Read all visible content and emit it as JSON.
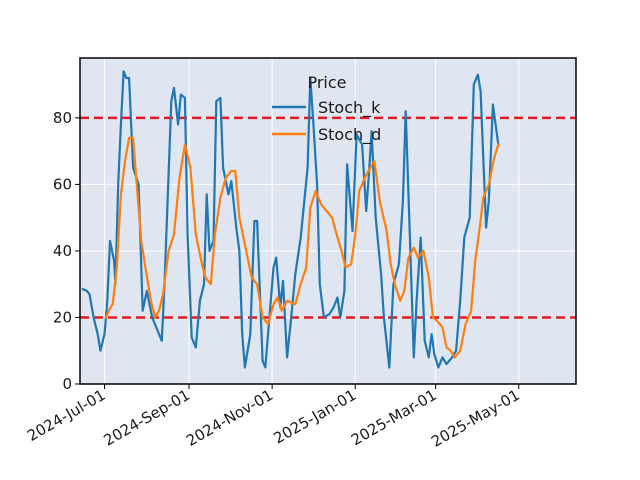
{
  "chart_data": {
    "type": "line",
    "title": "",
    "xlabel": "",
    "ylabel": "",
    "legend": {
      "title": "Price",
      "placement": "top-center"
    },
    "x_start": "2024-06-13",
    "x_end": "2025-06-12",
    "ylim": [
      0,
      98
    ],
    "yticks": [
      0,
      20,
      40,
      60,
      80
    ],
    "xticks": [
      {
        "date": "2024-07-01",
        "label": "2024-Jul-01"
      },
      {
        "date": "2024-09-01",
        "label": "2024-Sep-01"
      },
      {
        "date": "2024-11-01",
        "label": "2024-Nov-01"
      },
      {
        "date": "2025-01-01",
        "label": "2025-Jan-01"
      },
      {
        "date": "2025-03-01",
        "label": "2025-Mar-01"
      },
      {
        "date": "2025-05-01",
        "label": "2025-May-01"
      }
    ],
    "hlines": [
      {
        "value": 80,
        "color": "#e41a1c",
        "style": "dashed"
      },
      {
        "value": 20,
        "color": "#e41a1c",
        "style": "dashed"
      }
    ],
    "series": [
      {
        "name": "Stoch_k",
        "color": "#1f77b4",
        "points": [
          [
            "2024-06-15",
            28.5
          ],
          [
            "2024-06-18",
            28
          ],
          [
            "2024-06-20",
            27
          ],
          [
            "2024-06-23",
            20
          ],
          [
            "2024-06-26",
            15
          ],
          [
            "2024-06-28",
            10
          ],
          [
            "2024-07-01",
            15
          ],
          [
            "2024-07-03",
            25
          ],
          [
            "2024-07-05",
            43
          ],
          [
            "2024-07-08",
            37
          ],
          [
            "2024-07-09",
            30
          ],
          [
            "2024-07-11",
            60
          ],
          [
            "2024-07-13",
            78
          ],
          [
            "2024-07-15",
            94
          ],
          [
            "2024-07-17",
            92
          ],
          [
            "2024-07-19",
            92
          ],
          [
            "2024-07-22",
            65
          ],
          [
            "2024-07-26",
            60
          ],
          [
            "2024-07-29",
            22
          ],
          [
            "2024-08-01",
            28
          ],
          [
            "2024-08-05",
            20
          ],
          [
            "2024-08-09",
            16
          ],
          [
            "2024-08-12",
            13
          ],
          [
            "2024-08-14",
            30
          ],
          [
            "2024-08-19",
            85
          ],
          [
            "2024-08-21",
            89
          ],
          [
            "2024-08-24",
            78
          ],
          [
            "2024-08-26",
            87
          ],
          [
            "2024-08-29",
            86
          ],
          [
            "2024-08-31",
            45
          ],
          [
            "2024-09-03",
            14
          ],
          [
            "2024-09-06",
            11
          ],
          [
            "2024-09-09",
            25
          ],
          [
            "2024-09-12",
            30
          ],
          [
            "2024-09-14",
            57
          ],
          [
            "2024-09-16",
            40
          ],
          [
            "2024-09-19",
            43
          ],
          [
            "2024-09-21",
            85
          ],
          [
            "2024-09-24",
            86
          ],
          [
            "2024-09-26",
            65
          ],
          [
            "2024-09-30",
            57
          ],
          [
            "2024-10-02",
            61
          ],
          [
            "2024-10-06",
            46
          ],
          [
            "2024-10-08",
            40
          ],
          [
            "2024-10-10",
            15
          ],
          [
            "2024-10-12",
            5
          ],
          [
            "2024-10-16",
            15
          ],
          [
            "2024-10-19",
            49
          ],
          [
            "2024-10-21",
            49
          ],
          [
            "2024-10-25",
            7
          ],
          [
            "2024-10-27",
            5
          ],
          [
            "2024-10-30",
            20
          ],
          [
            "2024-11-02",
            35
          ],
          [
            "2024-11-04",
            38
          ],
          [
            "2024-11-07",
            23
          ],
          [
            "2024-11-09",
            31
          ],
          [
            "2024-11-12",
            8
          ],
          [
            "2024-11-15",
            20
          ],
          [
            "2024-11-18",
            33
          ],
          [
            "2024-11-22",
            44
          ],
          [
            "2024-11-27",
            65
          ],
          [
            "2024-11-29",
            92
          ],
          [
            "2024-12-01",
            80
          ],
          [
            "2024-12-04",
            60
          ],
          [
            "2024-12-06",
            30
          ],
          [
            "2024-12-09",
            20
          ],
          [
            "2024-12-13",
            21
          ],
          [
            "2024-12-16",
            23
          ],
          [
            "2024-12-19",
            26
          ],
          [
            "2024-12-21",
            20
          ],
          [
            "2024-12-24",
            28
          ],
          [
            "2024-12-26",
            66
          ],
          [
            "2024-12-30",
            46
          ],
          [
            "2025-01-02",
            75
          ],
          [
            "2025-01-06",
            72
          ],
          [
            "2025-01-09",
            52
          ],
          [
            "2025-01-11",
            63
          ],
          [
            "2025-01-13",
            76
          ],
          [
            "2025-01-16",
            50
          ],
          [
            "2025-01-20",
            33
          ],
          [
            "2025-01-22",
            20
          ],
          [
            "2025-01-26",
            5
          ],
          [
            "2025-01-29",
            30
          ],
          [
            "2025-02-02",
            36
          ],
          [
            "2025-02-05",
            55
          ],
          [
            "2025-02-07",
            82
          ],
          [
            "2025-02-10",
            45
          ],
          [
            "2025-02-13",
            8
          ],
          [
            "2025-02-15",
            25
          ],
          [
            "2025-02-18",
            44
          ],
          [
            "2025-02-21",
            13
          ],
          [
            "2025-02-24",
            8
          ],
          [
            "2025-02-26",
            15
          ],
          [
            "2025-02-28",
            9
          ],
          [
            "2025-03-03",
            5
          ],
          [
            "2025-03-06",
            8
          ],
          [
            "2025-03-09",
            6
          ],
          [
            "2025-03-13",
            8
          ],
          [
            "2025-03-16",
            10
          ],
          [
            "2025-03-19",
            25
          ],
          [
            "2025-03-22",
            44
          ],
          [
            "2025-03-26",
            50
          ],
          [
            "2025-03-29",
            90
          ],
          [
            "2025-04-01",
            93
          ],
          [
            "2025-04-03",
            88
          ],
          [
            "2025-04-07",
            47
          ],
          [
            "2025-04-09",
            55
          ],
          [
            "2025-04-12",
            84
          ],
          [
            "2025-04-16",
            72
          ]
        ]
      },
      {
        "name": "Stoch_d",
        "color": "#ff7f0e",
        "points": [
          [
            "2024-07-02",
            20
          ],
          [
            "2024-07-04",
            22
          ],
          [
            "2024-07-07",
            24
          ],
          [
            "2024-07-10",
            35
          ],
          [
            "2024-07-13",
            57
          ],
          [
            "2024-07-16",
            67
          ],
          [
            "2024-07-19",
            74
          ],
          [
            "2024-07-22",
            74
          ],
          [
            "2024-07-24",
            63
          ],
          [
            "2024-07-28",
            43
          ],
          [
            "2024-07-31",
            35
          ],
          [
            "2024-08-04",
            25
          ],
          [
            "2024-08-07",
            20
          ],
          [
            "2024-08-10",
            22
          ],
          [
            "2024-08-13",
            27
          ],
          [
            "2024-08-17",
            40
          ],
          [
            "2024-08-21",
            45
          ],
          [
            "2024-08-25",
            62
          ],
          [
            "2024-08-29",
            72
          ],
          [
            "2024-09-02",
            65
          ],
          [
            "2024-09-06",
            45
          ],
          [
            "2024-09-10",
            37
          ],
          [
            "2024-09-13",
            32
          ],
          [
            "2024-09-17",
            30
          ],
          [
            "2024-09-20",
            45
          ],
          [
            "2024-09-24",
            56
          ],
          [
            "2024-09-28",
            62
          ],
          [
            "2024-10-02",
            64
          ],
          [
            "2024-10-05",
            64
          ],
          [
            "2024-10-08",
            50
          ],
          [
            "2024-10-13",
            40
          ],
          [
            "2024-10-17",
            32
          ],
          [
            "2024-10-21",
            30
          ],
          [
            "2024-10-25",
            20
          ],
          [
            "2024-10-29",
            18
          ],
          [
            "2024-11-02",
            24
          ],
          [
            "2024-11-05",
            26
          ],
          [
            "2024-11-08",
            22
          ],
          [
            "2024-11-12",
            25
          ],
          [
            "2024-11-18",
            24
          ],
          [
            "2024-11-22",
            30
          ],
          [
            "2024-11-26",
            35
          ],
          [
            "2024-11-29",
            53
          ],
          [
            "2024-12-03",
            58
          ],
          [
            "2024-12-07",
            54
          ],
          [
            "2024-12-11",
            52
          ],
          [
            "2024-12-15",
            50
          ],
          [
            "2024-12-19",
            44
          ],
          [
            "2024-12-22",
            40
          ],
          [
            "2024-12-25",
            35
          ],
          [
            "2024-12-29",
            36
          ],
          [
            "2025-01-01",
            45
          ],
          [
            "2025-01-04",
            58
          ],
          [
            "2025-01-08",
            62
          ],
          [
            "2025-01-12",
            65
          ],
          [
            "2025-01-15",
            67
          ],
          [
            "2025-01-19",
            55
          ],
          [
            "2025-01-24",
            46
          ],
          [
            "2025-01-27",
            36
          ],
          [
            "2025-01-30",
            30
          ],
          [
            "2025-02-03",
            25
          ],
          [
            "2025-02-06",
            28
          ],
          [
            "2025-02-09",
            38
          ],
          [
            "2025-02-13",
            41
          ],
          [
            "2025-02-16",
            38
          ],
          [
            "2025-02-20",
            40
          ],
          [
            "2025-02-24",
            32
          ],
          [
            "2025-02-27",
            20
          ],
          [
            "2025-03-02",
            19
          ],
          [
            "2025-03-06",
            17
          ],
          [
            "2025-03-09",
            11
          ],
          [
            "2025-03-12",
            10
          ],
          [
            "2025-03-15",
            8
          ],
          [
            "2025-03-19",
            10
          ],
          [
            "2025-03-23",
            18
          ],
          [
            "2025-03-27",
            22
          ],
          [
            "2025-03-30",
            37
          ],
          [
            "2025-04-02",
            46
          ],
          [
            "2025-04-05",
            56
          ],
          [
            "2025-04-09",
            60
          ],
          [
            "2025-04-13",
            68
          ],
          [
            "2025-04-16",
            72
          ]
        ]
      }
    ]
  }
}
